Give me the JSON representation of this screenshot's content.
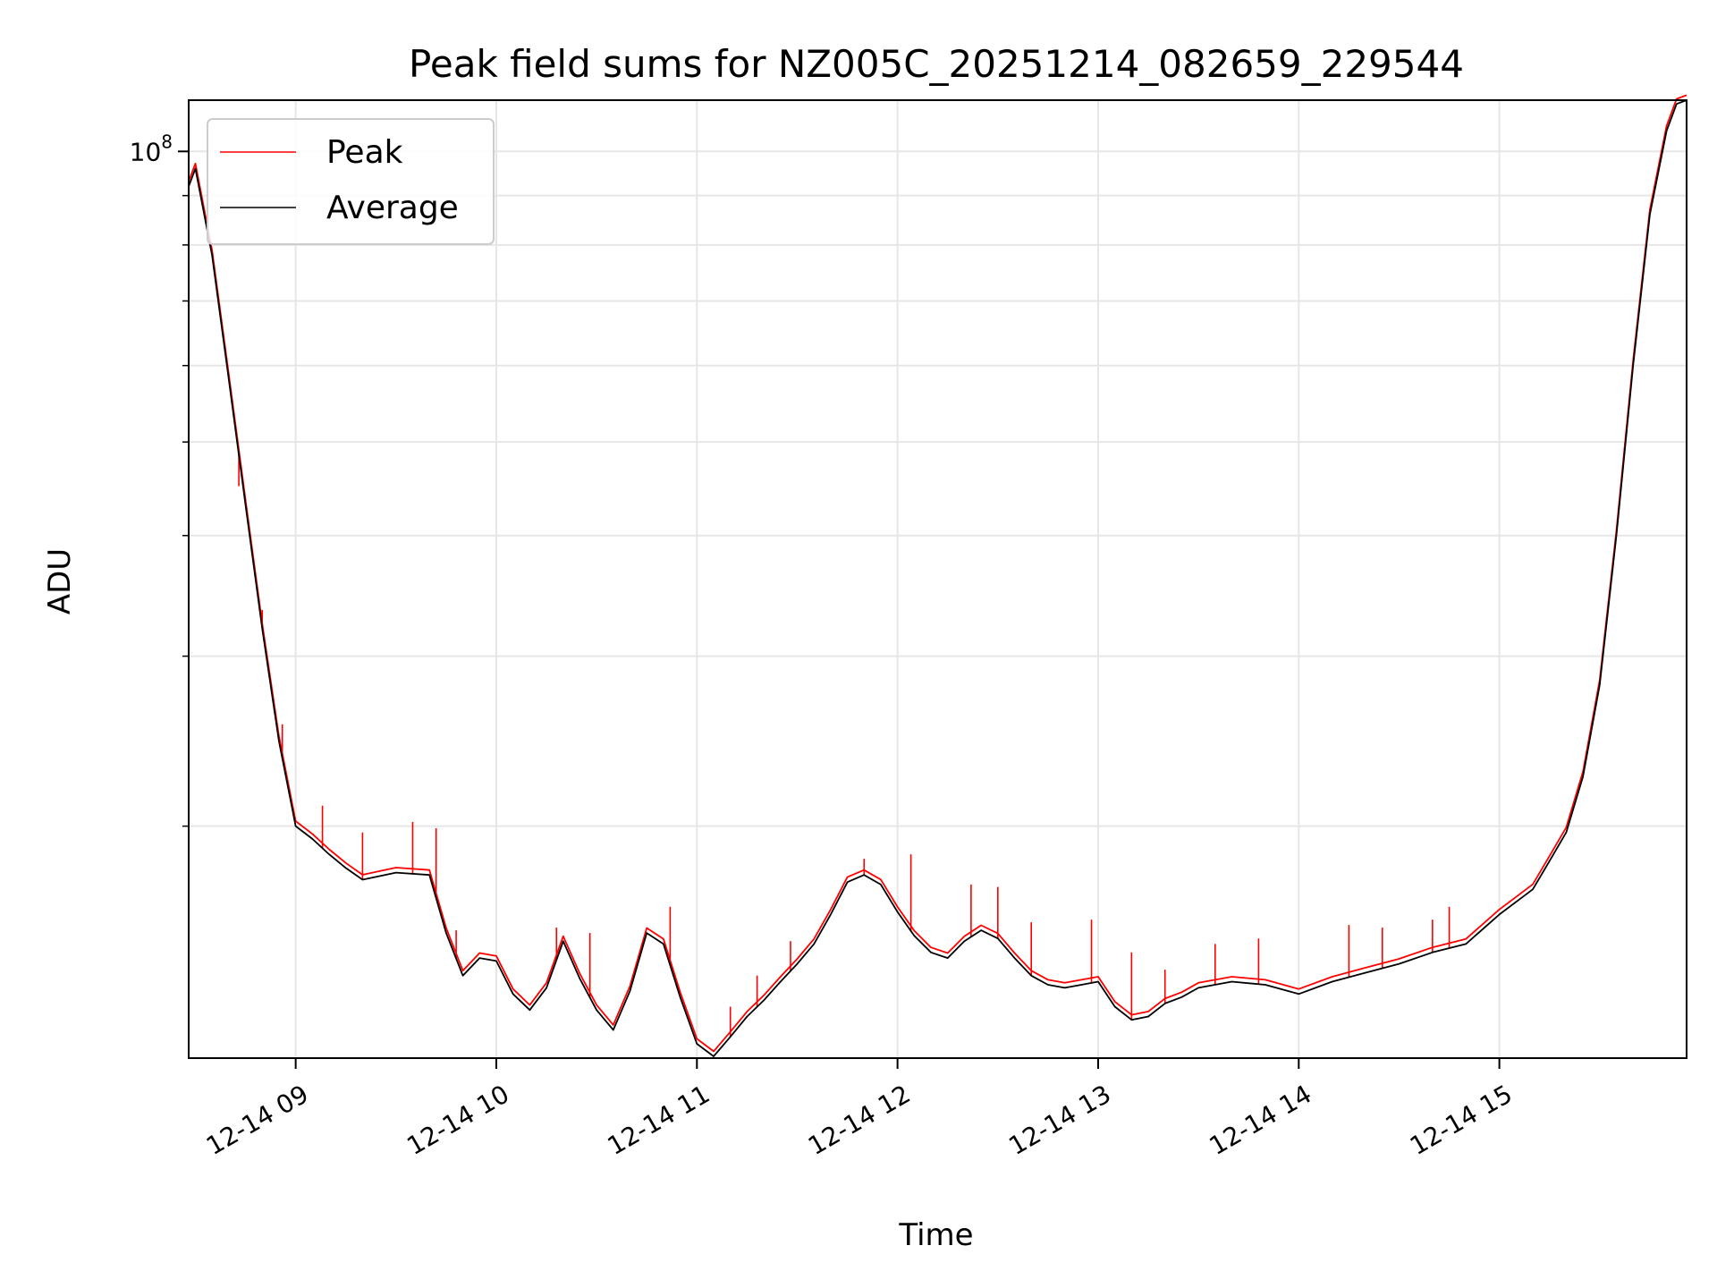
{
  "chart_data": {
    "type": "line",
    "title": "Peak field sums for NZ005C_20251214_082659_229544",
    "xlabel": "Time",
    "ylabel": "ADU",
    "x_axis": {
      "type": "time",
      "range": [
        "2025-12-14 08:28",
        "2025-12-14 15:56"
      ],
      "ticks": [
        {
          "t": "2025-12-14 09:00",
          "label": "12-14 09"
        },
        {
          "t": "2025-12-14 10:00",
          "label": "12-14 10"
        },
        {
          "t": "2025-12-14 11:00",
          "label": "12-14 11"
        },
        {
          "t": "2025-12-14 12:00",
          "label": "12-14 12"
        },
        {
          "t": "2025-12-14 13:00",
          "label": "12-14 13"
        },
        {
          "t": "2025-12-14 14:00",
          "label": "12-14 14"
        },
        {
          "t": "2025-12-14 15:00",
          "label": "12-14 15"
        }
      ]
    },
    "y_axis": {
      "scale": "log",
      "range": [
        11500000,
        113000000
      ],
      "major_ticks": [
        {
          "value": 100000000,
          "base": "10",
          "exponent": "8"
        }
      ],
      "minor_ticks": [
        20000000,
        30000000,
        40000000,
        50000000,
        60000000,
        70000000,
        80000000,
        90000000
      ]
    },
    "grid": true,
    "legend": {
      "position": "top-left"
    },
    "series": [
      {
        "name": "Average",
        "color": "#000000",
        "x": [
          "2025-12-14 08:28",
          "2025-12-14 08:30",
          "2025-12-14 08:35",
          "2025-12-14 08:40",
          "2025-12-14 08:45",
          "2025-12-14 08:50",
          "2025-12-14 08:55",
          "2025-12-14 09:00",
          "2025-12-14 09:05",
          "2025-12-14 09:10",
          "2025-12-14 09:15",
          "2025-12-14 09:20",
          "2025-12-14 09:30",
          "2025-12-14 09:40",
          "2025-12-14 09:45",
          "2025-12-14 09:50",
          "2025-12-14 09:55",
          "2025-12-14 10:00",
          "2025-12-14 10:05",
          "2025-12-14 10:10",
          "2025-12-14 10:15",
          "2025-12-14 10:20",
          "2025-12-14 10:25",
          "2025-12-14 10:30",
          "2025-12-14 10:35",
          "2025-12-14 10:40",
          "2025-12-14 10:45",
          "2025-12-14 10:50",
          "2025-12-14 10:55",
          "2025-12-14 11:00",
          "2025-12-14 11:05",
          "2025-12-14 11:10",
          "2025-12-14 11:15",
          "2025-12-14 11:20",
          "2025-12-14 11:25",
          "2025-12-14 11:30",
          "2025-12-14 11:35",
          "2025-12-14 11:40",
          "2025-12-14 11:45",
          "2025-12-14 11:50",
          "2025-12-14 11:55",
          "2025-12-14 12:00",
          "2025-12-14 12:05",
          "2025-12-14 12:10",
          "2025-12-14 12:15",
          "2025-12-14 12:20",
          "2025-12-14 12:25",
          "2025-12-14 12:30",
          "2025-12-14 12:35",
          "2025-12-14 12:40",
          "2025-12-14 12:45",
          "2025-12-14 12:50",
          "2025-12-14 12:55",
          "2025-12-14 13:00",
          "2025-12-14 13:05",
          "2025-12-14 13:10",
          "2025-12-14 13:15",
          "2025-12-14 13:20",
          "2025-12-14 13:25",
          "2025-12-14 13:30",
          "2025-12-14 13:40",
          "2025-12-14 13:50",
          "2025-12-14 14:00",
          "2025-12-14 14:10",
          "2025-12-14 14:20",
          "2025-12-14 14:30",
          "2025-12-14 14:40",
          "2025-12-14 14:50",
          "2025-12-14 15:00",
          "2025-12-14 15:10",
          "2025-12-14 15:15",
          "2025-12-14 15:20",
          "2025-12-14 15:25",
          "2025-12-14 15:30",
          "2025-12-14 15:35",
          "2025-12-14 15:40",
          "2025-12-14 15:45",
          "2025-12-14 15:50",
          "2025-12-14 15:53",
          "2025-12-14 15:56"
        ],
        "y": [
          92000000,
          96000000,
          78000000,
          58000000,
          43000000,
          32000000,
          24500000,
          20000000,
          19400000,
          18700000,
          18100000,
          17600000,
          17900000,
          17800000,
          15500000,
          14000000,
          14600000,
          14500000,
          13400000,
          12900000,
          13600000,
          15200000,
          13900000,
          12900000,
          12300000,
          13500000,
          15500000,
          15100000,
          13300000,
          11900000,
          11550000,
          12100000,
          12700000,
          13200000,
          13800000,
          14400000,
          15100000,
          16200000,
          17500000,
          17800000,
          17400000,
          16300000,
          15400000,
          14800000,
          14600000,
          15200000,
          15600000,
          15300000,
          14600000,
          14000000,
          13700000,
          13600000,
          13700000,
          13800000,
          13000000,
          12600000,
          12700000,
          13100000,
          13300000,
          13600000,
          13800000,
          13700000,
          13400000,
          13800000,
          14100000,
          14400000,
          14800000,
          15100000,
          16200000,
          17200000,
          18400000,
          19700000,
          22500000,
          28000000,
          40000000,
          60000000,
          86000000,
          105000000,
          112000000,
          113000000
        ]
      },
      {
        "name": "Peak",
        "color": "#ff0000",
        "note_spikes": "Peak follows Average with intermittent upward spikes",
        "spikes": [
          {
            "t": "2025-12-14 08:43",
            "y": 45000000
          },
          {
            "t": "2025-12-14 08:50",
            "y": 33500000
          },
          {
            "t": "2025-12-14 08:56",
            "y": 25500000
          },
          {
            "t": "2025-12-14 09:08",
            "y": 21000000
          },
          {
            "t": "2025-12-14 09:20",
            "y": 19700000
          },
          {
            "t": "2025-12-14 09:35",
            "y": 20200000
          },
          {
            "t": "2025-12-14 09:42",
            "y": 19900000
          },
          {
            "t": "2025-12-14 09:48",
            "y": 15600000
          },
          {
            "t": "2025-12-14 10:18",
            "y": 15700000
          },
          {
            "t": "2025-12-14 10:28",
            "y": 15500000
          },
          {
            "t": "2025-12-14 10:52",
            "y": 16500000
          },
          {
            "t": "2025-12-14 11:10",
            "y": 13000000
          },
          {
            "t": "2025-12-14 11:18",
            "y": 14000000
          },
          {
            "t": "2025-12-14 11:28",
            "y": 15200000
          },
          {
            "t": "2025-12-14 11:50",
            "y": 18500000
          },
          {
            "t": "2025-12-14 12:04",
            "y": 18700000
          },
          {
            "t": "2025-12-14 12:22",
            "y": 17400000
          },
          {
            "t": "2025-12-14 12:30",
            "y": 17300000
          },
          {
            "t": "2025-12-14 12:40",
            "y": 15900000
          },
          {
            "t": "2025-12-14 12:58",
            "y": 16000000
          },
          {
            "t": "2025-12-14 13:10",
            "y": 14800000
          },
          {
            "t": "2025-12-14 13:20",
            "y": 14200000
          },
          {
            "t": "2025-12-14 13:35",
            "y": 15100000
          },
          {
            "t": "2025-12-14 13:48",
            "y": 15300000
          },
          {
            "t": "2025-12-14 14:15",
            "y": 15800000
          },
          {
            "t": "2025-12-14 14:25",
            "y": 15700000
          },
          {
            "t": "2025-12-14 14:40",
            "y": 16000000
          },
          {
            "t": "2025-12-14 14:45",
            "y": 16500000
          }
        ]
      }
    ]
  }
}
